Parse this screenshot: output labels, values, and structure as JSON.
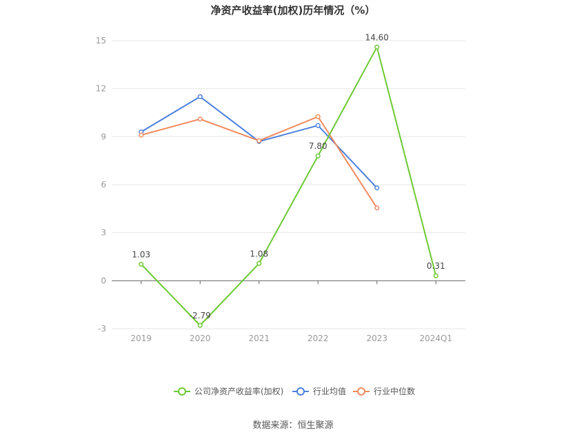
{
  "chart_data": {
    "type": "line",
    "title": "净资产收益率(加权)历年情况（%）",
    "categories": [
      "2019",
      "2020",
      "2021",
      "2022",
      "2023",
      "2024Q1"
    ],
    "ylim": [
      -3,
      15
    ],
    "yticks": [
      -3,
      0,
      3,
      6,
      9,
      12,
      15
    ],
    "grid": true,
    "legend_position": "bottom-center",
    "series": [
      {
        "name": "公司净资产收益率(加权)",
        "color": "#6cc832",
        "values": [
          1.03,
          -2.79,
          1.08,
          7.8,
          14.6,
          0.31
        ],
        "labels": [
          "1.03",
          "-2.79",
          "1.08",
          "7.80",
          "14.60",
          "0.31"
        ]
      },
      {
        "name": "行业均值",
        "color": "#4a7fdc",
        "values": [
          9.3,
          11.5,
          8.7,
          9.7,
          5.8,
          null
        ]
      },
      {
        "name": "行业中位数",
        "color": "#f08a5d",
        "values": [
          9.1,
          10.1,
          8.75,
          10.25,
          4.55,
          null
        ]
      }
    ]
  },
  "source_text": "数据来源：恒生聚源"
}
